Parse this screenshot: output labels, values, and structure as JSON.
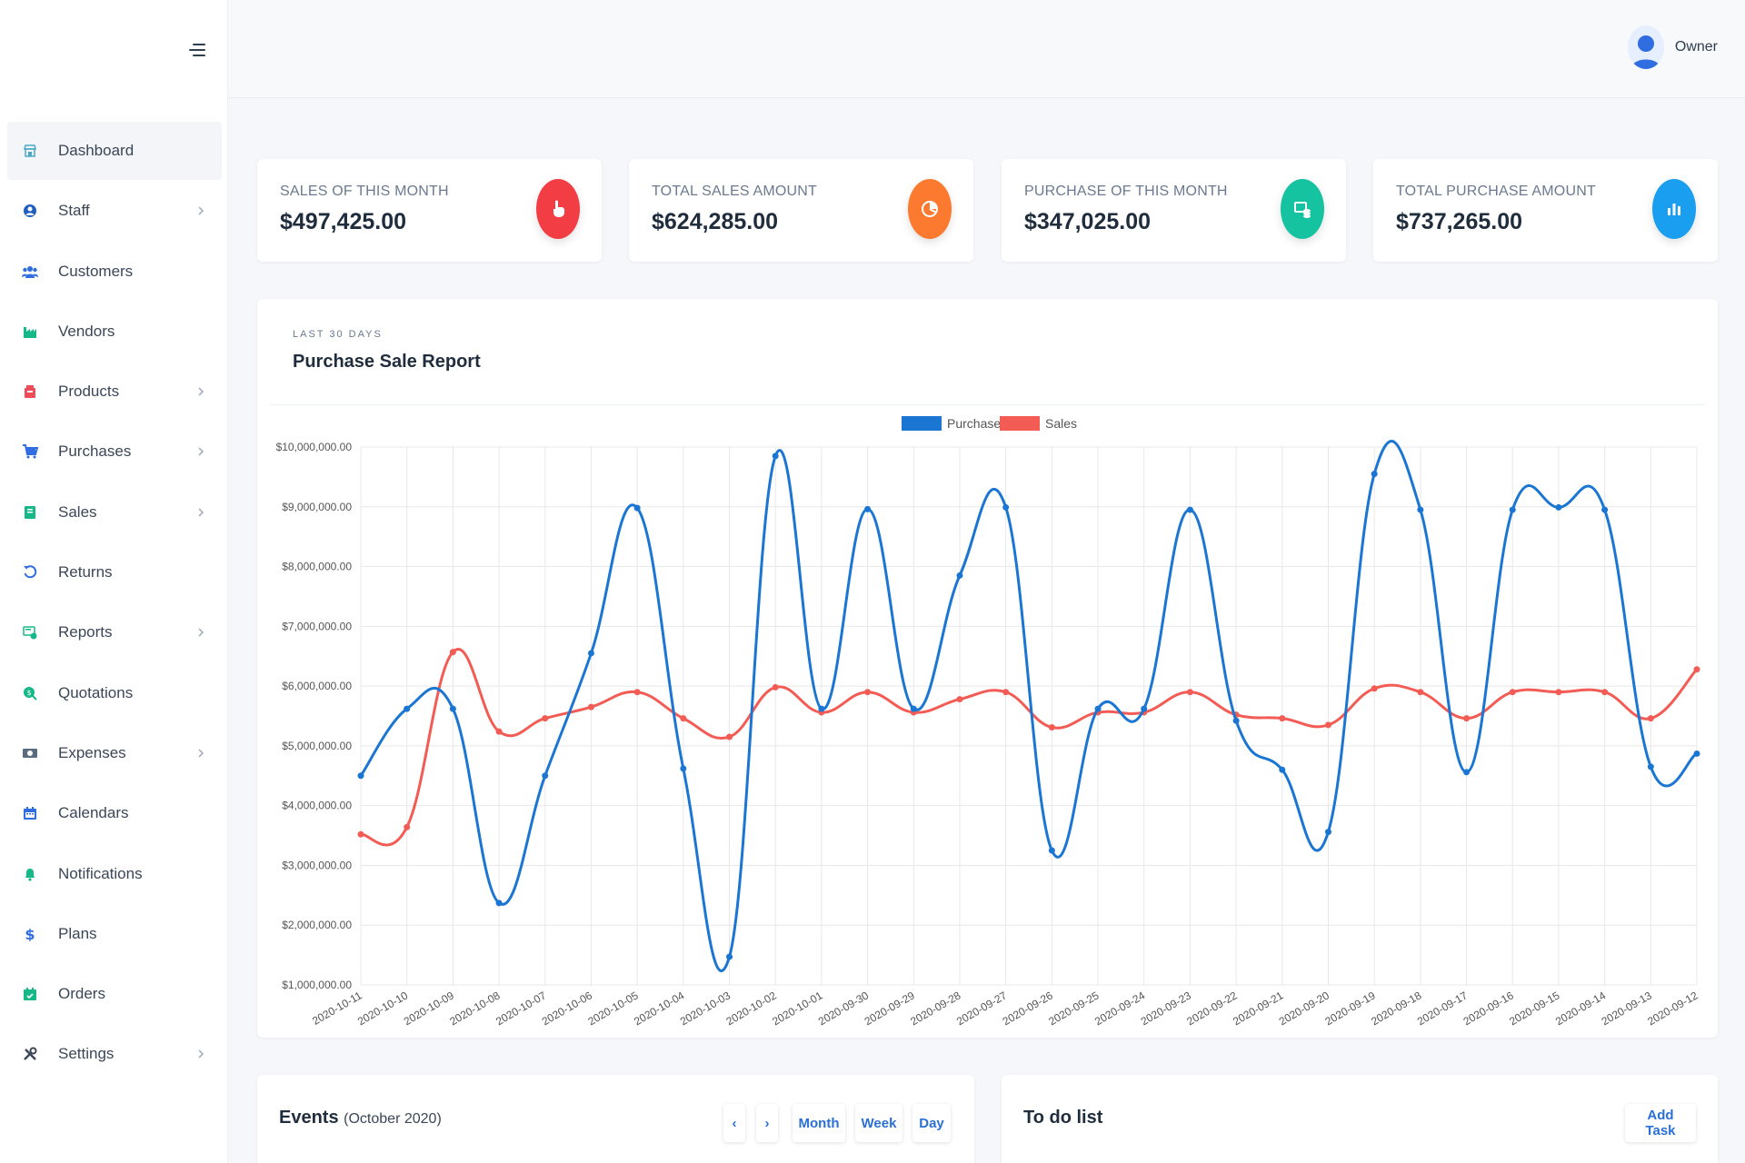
{
  "sidebar": {
    "items": [
      {
        "label": "Dashboard",
        "icon": "store-icon",
        "active": true,
        "chevron": false
      },
      {
        "label": "Staff",
        "icon": "user-icon",
        "chevron": true
      },
      {
        "label": "Customers",
        "icon": "users-icon",
        "chevron": false
      },
      {
        "label": "Vendors",
        "icon": "industry-icon",
        "chevron": false
      },
      {
        "label": "Products",
        "icon": "box-icon",
        "chevron": true
      },
      {
        "label": "Purchases",
        "icon": "cart-icon",
        "chevron": true
      },
      {
        "label": "Sales",
        "icon": "book-icon",
        "chevron": true
      },
      {
        "label": "Returns",
        "icon": "undo-icon",
        "chevron": false
      },
      {
        "label": "Reports",
        "icon": "report-icon",
        "chevron": true
      },
      {
        "label": "Quotations",
        "icon": "quotation-icon",
        "chevron": false
      },
      {
        "label": "Expenses",
        "icon": "money-icon",
        "chevron": true
      },
      {
        "label": "Calendars",
        "icon": "calendar-icon",
        "chevron": false
      },
      {
        "label": "Notifications",
        "icon": "bell-icon",
        "chevron": false
      },
      {
        "label": "Plans",
        "icon": "dollar-icon",
        "chevron": false
      },
      {
        "label": "Orders",
        "icon": "calendar-check-icon",
        "chevron": false
      },
      {
        "label": "Settings",
        "icon": "tools-icon",
        "chevron": true
      }
    ]
  },
  "header": {
    "user_name": "Owner"
  },
  "stats": [
    {
      "label": "Sales of this month",
      "value": "$497,425.00",
      "icon": "hand-pointer-icon",
      "color": "#f23d45"
    },
    {
      "label": "Total Sales Amount",
      "value": "$624,285.00",
      "icon": "pie-chart-icon",
      "color": "#fb7a2f"
    },
    {
      "label": "Purchase of this month",
      "value": "$347,025.00",
      "icon": "money-check-icon",
      "color": "#16c3a0"
    },
    {
      "label": "Total Purchase Amount",
      "value": "$737,265.00",
      "icon": "bar-chart-icon",
      "color": "#1a9ef0"
    }
  ],
  "report": {
    "subtitle": "Last 30 days",
    "title": "Purchase Sale Report"
  },
  "chart_data": {
    "type": "line",
    "categories": [
      "2020-10-11",
      "2020-10-10",
      "2020-10-09",
      "2020-10-08",
      "2020-10-07",
      "2020-10-06",
      "2020-10-05",
      "2020-10-04",
      "2020-10-03",
      "2020-10-02",
      "2020-10-01",
      "2020-09-30",
      "2020-09-29",
      "2020-09-28",
      "2020-09-27",
      "2020-09-26",
      "2020-09-25",
      "2020-09-24",
      "2020-09-23",
      "2020-09-22",
      "2020-09-21",
      "2020-09-20",
      "2020-09-19",
      "2020-09-18",
      "2020-09-17",
      "2020-09-16",
      "2020-09-15",
      "2020-09-14",
      "2020-09-13",
      "2020-09-12"
    ],
    "series": [
      {
        "name": "Purchase",
        "color": "#1a76d2",
        "values": [
          4500000,
          5620000,
          5620000,
          2370000,
          4500000,
          6550000,
          8980000,
          4620000,
          1470000,
          9850000,
          5620000,
          8960000,
          5620000,
          7850000,
          8990000,
          3250000,
          5620000,
          5620000,
          8950000,
          5420000,
          4600000,
          3560000,
          9550000,
          8950000,
          4560000,
          8950000,
          8990000,
          8950000,
          4650000,
          4870000
        ]
      },
      {
        "name": "Sales",
        "color": "#f25c55",
        "values": [
          3520000,
          3640000,
          6570000,
          5240000,
          5460000,
          5650000,
          5900000,
          5460000,
          5150000,
          5980000,
          5560000,
          5900000,
          5560000,
          5780000,
          5900000,
          5310000,
          5560000,
          5560000,
          5900000,
          5520000,
          5460000,
          5350000,
          5960000,
          5900000,
          5460000,
          5900000,
          5900000,
          5900000,
          5460000,
          6280000
        ]
      }
    ],
    "ylim": [
      1000000,
      10000000
    ],
    "yticks": [
      "$1,000,000.00",
      "$2,000,000.00",
      "$3,000,000.00",
      "$4,000,000.00",
      "$5,000,000.00",
      "$6,000,000.00",
      "$7,000,000.00",
      "$8,000,000.00",
      "$9,000,000.00",
      "$10,000,000.00"
    ],
    "legend": "top-center",
    "grid": true
  },
  "events": {
    "title": "Events",
    "period": "(October 2020)",
    "prev": "‹",
    "next": "›",
    "month": "Month",
    "week": "Week",
    "day": "Day"
  },
  "todo": {
    "title": "To do list",
    "add": "Add Task"
  }
}
